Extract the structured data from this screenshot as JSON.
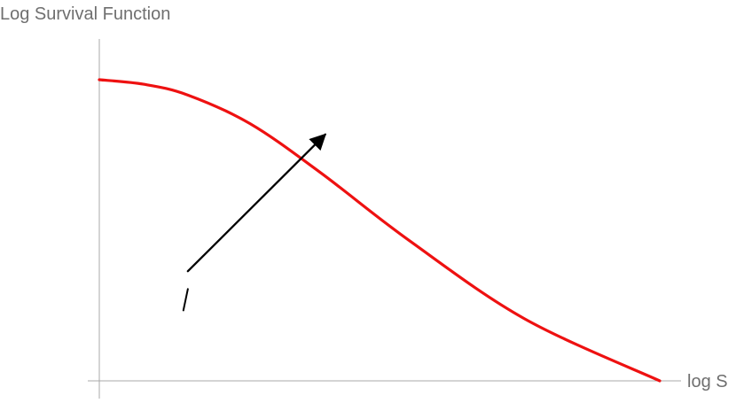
{
  "chart_data": {
    "type": "line",
    "title": "",
    "xlabel": "log S",
    "ylabel": "Log Survival Function",
    "xlim": [
      0,
      10
    ],
    "ylim": [
      0,
      10
    ],
    "grid": false,
    "legend": "none",
    "series": [
      {
        "color": "#ee1111",
        "x": [
          0.0,
          0.79,
          1.58,
          2.69,
          3.95,
          5.53,
          7.59,
          10.0
        ],
        "y": [
          10.0,
          9.85,
          9.49,
          8.54,
          6.91,
          4.66,
          2.06,
          0.0
        ]
      }
    ],
    "annotations": [
      {
        "kind": "arrow",
        "from": [
          1.58,
          3.64
        ],
        "to": [
          4.03,
          8.18
        ],
        "color": "#000000"
      },
      {
        "kind": "mark",
        "from": [
          1.5,
          2.34
        ],
        "to": [
          1.58,
          3.05
        ],
        "color": "#000000"
      }
    ]
  }
}
